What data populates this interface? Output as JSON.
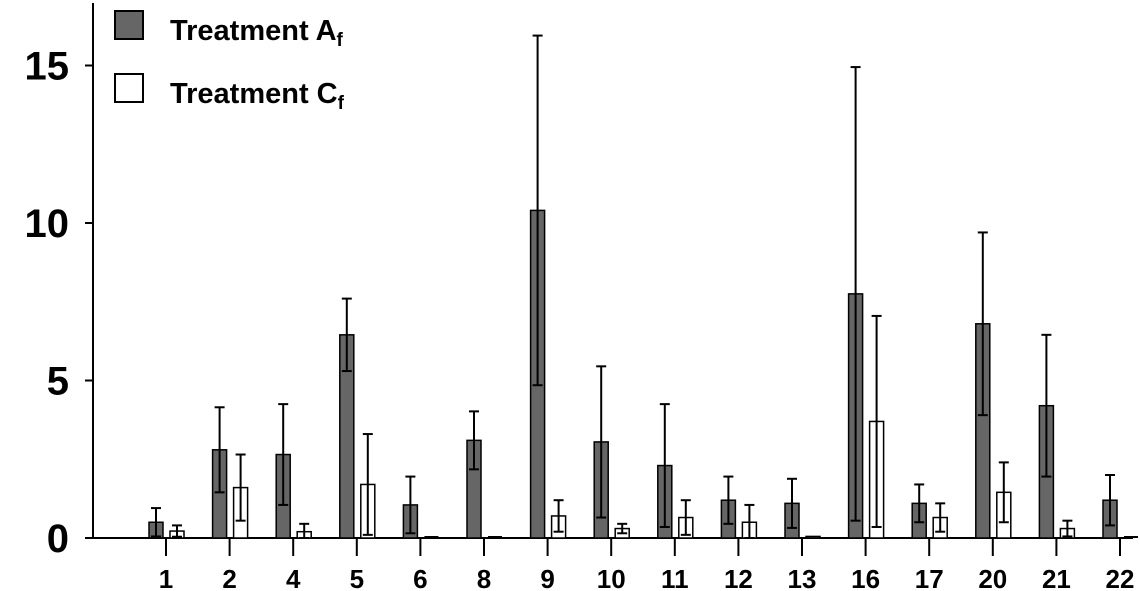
{
  "chart_data": {
    "type": "bar",
    "title": "",
    "xlabel": "",
    "ylabel": "",
    "ylim": [
      0,
      16.5
    ],
    "yticks": [
      0,
      5,
      10,
      15
    ],
    "categories": [
      "1",
      "2",
      "4",
      "5",
      "6",
      "8",
      "9",
      "10",
      "11",
      "12",
      "13",
      "16",
      "17",
      "20",
      "21",
      "22"
    ],
    "legend_position": "top-left",
    "grid": false,
    "series": [
      {
        "name": "Treatment A",
        "name_subscript": "f",
        "color": "#666666",
        "values": [
          0.5,
          2.8,
          2.65,
          6.45,
          1.05,
          3.1,
          10.4,
          3.05,
          2.3,
          1.2,
          1.1,
          7.75,
          1.1,
          6.8,
          4.2,
          1.2
        ],
        "errors": [
          0.45,
          1.35,
          1.6,
          1.15,
          0.9,
          0.92,
          5.55,
          2.4,
          1.95,
          0.75,
          0.78,
          7.2,
          0.6,
          2.9,
          2.25,
          0.8
        ]
      },
      {
        "name": "Treatment C",
        "name_subscript": "f",
        "color": "#ffffff",
        "values": [
          0.22,
          1.6,
          0.2,
          1.7,
          0.0,
          0.0,
          0.7,
          0.3,
          0.65,
          0.5,
          0.05,
          3.7,
          0.65,
          1.45,
          0.3,
          0.0
        ],
        "errors": [
          0.18,
          1.05,
          0.25,
          1.6,
          0.0,
          0.0,
          0.5,
          0.15,
          0.55,
          0.55,
          0.0,
          3.35,
          0.45,
          0.95,
          0.25,
          0.0
        ]
      }
    ]
  }
}
